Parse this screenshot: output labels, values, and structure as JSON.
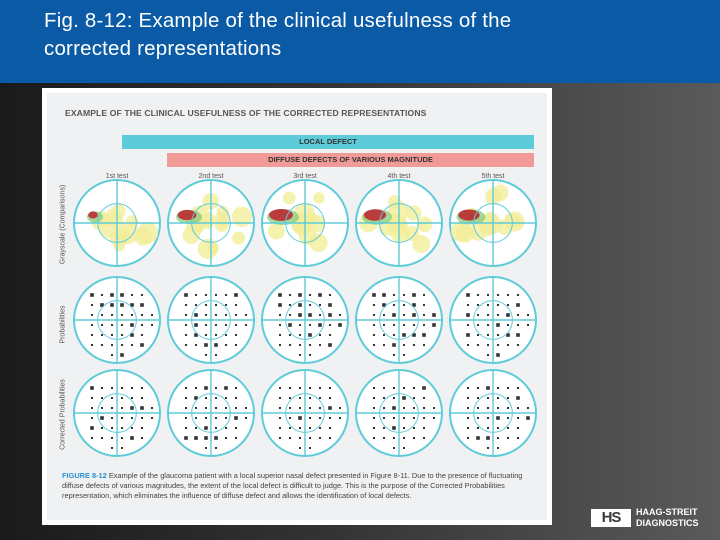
{
  "slide": {
    "title_line1": "Fig. 8-12: Example of the clinical usefulness of the",
    "title_line2": "corrected representations"
  },
  "figure": {
    "title": "EXAMPLE OF THE CLINICAL USEFULNESS OF THE CORRECTED REPRESENTATIONS",
    "band_local": "LOCAL DEFECT",
    "band_diffuse": "DIFFUSE DEFECTS OF VARIOUS MAGNITUDE",
    "columns": [
      "1st test",
      "2nd test",
      "3rd test",
      "4th test",
      "5th test"
    ],
    "rows": [
      "Grayscale (Comparisons)",
      "Probabilities",
      "Corrected Probabilities"
    ],
    "caption_lead": "FIGURE 8-12",
    "caption_body": "Example of the glaucoma patient with a local superior nasal defect presented in Figure 8-11. Due to the presence of fluctuating diffuse defects of various magnitudes, the extent of the local defect is difficult to judge. This is the purpose of the Corrected Probabilities representation, which eliminates the influence of diffuse defect and allows the identification of local defects.",
    "colors": {
      "ring": "#5ecbd9",
      "defect_red": "#c0202a",
      "defect_yellow": "#f2ee9a",
      "defect_green": "#7dc97a"
    }
  },
  "logo": {
    "mark": "HS",
    "line1": "HAAG-STREIT",
    "line2": "DIAGNOSTICS"
  }
}
